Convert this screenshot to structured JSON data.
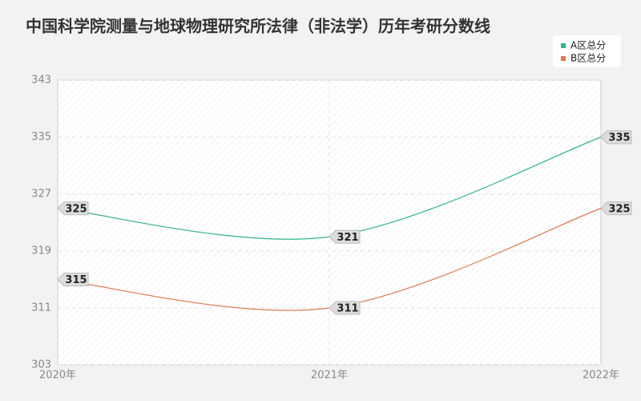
{
  "chart_data": {
    "type": "line",
    "title": "中国科学院测量与地球物理研究所法律（非法学）历年考研分数线",
    "categories": [
      "2020年",
      "2021年",
      "2022年"
    ],
    "series": [
      {
        "name": "A区总分",
        "color": "#2fb38a",
        "values": [
          325,
          321,
          335
        ]
      },
      {
        "name": "B区总分",
        "color": "#e0784f",
        "values": [
          315,
          311,
          325
        ]
      }
    ],
    "ylim": [
      303,
      343
    ],
    "yticks": [
      303,
      311,
      319,
      327,
      335,
      343
    ],
    "grid": true,
    "legend": "top-right"
  }
}
